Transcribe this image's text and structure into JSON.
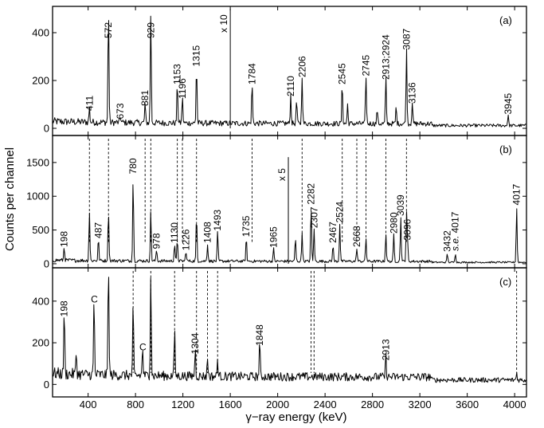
{
  "chart_data": {
    "type": "line",
    "xlabel": "γ−ray energy (keV)",
    "ylabel": "Counts per channel",
    "xlim": [
      100,
      4100
    ],
    "x_ticks": [
      400,
      800,
      1200,
      1600,
      2000,
      2400,
      2800,
      3200,
      3600,
      4000
    ],
    "panels": [
      {
        "label": "(a)",
        "ylim": [
          -30,
          510
        ],
        "y_ticks": [
          0,
          200,
          400
        ],
        "noise": 30,
        "scale_marker": {
          "text": "x 10",
          "x": 1600,
          "y_top": 500
        },
        "peaks": [
          {
            "x": 411,
            "height": 60,
            "label": "411"
          },
          {
            "x": 572,
            "height": 490,
            "label": "572"
          },
          {
            "x": 673,
            "height": 25,
            "label": "673"
          },
          {
            "x": 881,
            "height": 80,
            "label": "881"
          },
          {
            "x": 929,
            "height": 465,
            "label": "929"
          },
          {
            "x": 1153,
            "height": 170,
            "label": "1153"
          },
          {
            "x": 1196,
            "height": 110,
            "label": "1196"
          },
          {
            "x": 1315,
            "height": 245,
            "label": "1315"
          },
          {
            "x": 1784,
            "height": 170,
            "label": "1784"
          },
          {
            "x": 2110,
            "height": 120,
            "label": "2110"
          },
          {
            "x": 2206,
            "height": 200,
            "label": "2206"
          },
          {
            "x": 2545,
            "height": 170,
            "label": "2545"
          },
          {
            "x": 2745,
            "height": 205,
            "label": "2745"
          },
          {
            "x": 2913,
            "height": 190,
            "label": "2913;2924"
          },
          {
            "x": 3087,
            "height": 315,
            "label": "3087"
          },
          {
            "x": 3136,
            "height": 90,
            "label": "3136"
          },
          {
            "x": 3945,
            "height": 45,
            "label": "3945"
          }
        ],
        "plain_peaks": [
          {
            "x": 2160,
            "height": 100
          },
          {
            "x": 2590,
            "height": 80
          },
          {
            "x": 2840,
            "height": 60
          },
          {
            "x": 3000,
            "height": 70
          }
        ]
      },
      {
        "label": "(b)",
        "ylim": [
          -60,
          1900
        ],
        "y_ticks": [
          0,
          500,
          1000,
          1500
        ],
        "noise": 55,
        "scale_marker": {
          "text": "x 5",
          "x": 2090,
          "y_top": 1580
        },
        "peaks": [
          {
            "x": 198,
            "height": 200,
            "label": "198"
          },
          {
            "x": 411,
            "height": 740,
            "label": ""
          },
          {
            "x": 487,
            "height": 330,
            "label": "487"
          },
          {
            "x": 572,
            "height": 760,
            "label": ""
          },
          {
            "x": 780,
            "height": 1280,
            "label": "780"
          },
          {
            "x": 929,
            "height": 730,
            "label": ""
          },
          {
            "x": 978,
            "height": 170,
            "label": "978"
          },
          {
            "x": 1130,
            "height": 260,
            "label": "1130"
          },
          {
            "x": 1153,
            "height": 320,
            "label": ""
          },
          {
            "x": 1226,
            "height": 150,
            "label": "1226"
          },
          {
            "x": 1315,
            "height": 690,
            "label": ""
          },
          {
            "x": 1408,
            "height": 260,
            "label": "1408"
          },
          {
            "x": 1493,
            "height": 440,
            "label": "1493"
          },
          {
            "x": 1735,
            "height": 350,
            "label": "1735"
          },
          {
            "x": 1965,
            "height": 190,
            "label": "1965"
          },
          {
            "x": 2282,
            "height": 830,
            "label": "2282"
          },
          {
            "x": 2307,
            "height": 480,
            "label": "2307"
          },
          {
            "x": 2467,
            "height": 260,
            "label": "2467"
          },
          {
            "x": 2524,
            "height": 560,
            "label": "2524"
          },
          {
            "x": 2668,
            "height": 200,
            "label": "2668"
          },
          {
            "x": 2980,
            "height": 400,
            "label": "2980"
          },
          {
            "x": 3039,
            "height": 660,
            "label": "3039"
          },
          {
            "x": 3096,
            "height": 300,
            "label": "3096"
          },
          {
            "x": 3432,
            "height": 130,
            "label": "3432"
          },
          {
            "x": 3500,
            "height": 140,
            "label": "4017",
            "prefix": "s.e."
          },
          {
            "x": 4017,
            "height": 820,
            "label": "4017"
          }
        ],
        "plain_peaks": [
          {
            "x": 2150,
            "height": 350
          },
          {
            "x": 2206,
            "height": 430
          },
          {
            "x": 2745,
            "height": 350
          },
          {
            "x": 2913,
            "height": 420
          },
          {
            "x": 3087,
            "height": 720
          }
        ]
      },
      {
        "label": "(c)",
        "ylim": [
          -60,
          560
        ],
        "y_ticks": [
          0,
          200,
          400
        ],
        "noise": 55,
        "peaks": [
          {
            "x": 198,
            "height": 310,
            "label": "198"
          },
          {
            "x": 450,
            "height": 370,
            "label": "C"
          },
          {
            "x": 572,
            "height": 560,
            "label": ""
          },
          {
            "x": 780,
            "height": 345,
            "label": ""
          },
          {
            "x": 860,
            "height": 140,
            "label": "C"
          },
          {
            "x": 929,
            "height": 500,
            "label": ""
          },
          {
            "x": 1130,
            "height": 220,
            "label": ""
          },
          {
            "x": 1304,
            "height": 130,
            "label": "1304"
          },
          {
            "x": 1848,
            "height": 170,
            "label": "1848"
          },
          {
            "x": 2913,
            "height": 100,
            "label": "2913"
          },
          {
            "x": 4017,
            "height": 35,
            "label": ""
          }
        ],
        "plain_peaks": [
          {
            "x": 300,
            "height": 110
          },
          {
            "x": 1408,
            "height": 90
          },
          {
            "x": 1493,
            "height": 80
          }
        ]
      }
    ],
    "dashed_lines": [
      {
        "x": 411,
        "from": "b",
        "to": "a"
      },
      {
        "x": 572,
        "from": "b",
        "to": "a"
      },
      {
        "x": 881,
        "from": "b",
        "to": "a"
      },
      {
        "x": 929,
        "from": "b",
        "to": "a"
      },
      {
        "x": 1153,
        "from": "b",
        "to": "a"
      },
      {
        "x": 1196,
        "from": "b",
        "to": "a"
      },
      {
        "x": 1315,
        "from": "b",
        "to": "a"
      },
      {
        "x": 1784,
        "from": "b",
        "to": "a"
      },
      {
        "x": 2206,
        "from": "b",
        "to": "a"
      },
      {
        "x": 2545,
        "from": "b",
        "to": "a"
      },
      {
        "x": 2668,
        "from": "b",
        "to": "a"
      },
      {
        "x": 2745,
        "from": "b",
        "to": "a"
      },
      {
        "x": 2913,
        "from": "b",
        "to": "a"
      },
      {
        "x": 3087,
        "from": "b",
        "to": "a"
      },
      {
        "x": 780,
        "from": "c",
        "to": "b"
      },
      {
        "x": 929,
        "from": "c",
        "to": "b"
      },
      {
        "x": 1130,
        "from": "c",
        "to": "b"
      },
      {
        "x": 1315,
        "from": "c",
        "to": "b"
      },
      {
        "x": 1408,
        "from": "c",
        "to": "b"
      },
      {
        "x": 1493,
        "from": "c",
        "to": "b"
      },
      {
        "x": 2282,
        "from": "c",
        "to": "b"
      },
      {
        "x": 2307,
        "from": "c",
        "to": "b"
      },
      {
        "x": 4017,
        "from": "c",
        "to": "b"
      }
    ]
  }
}
